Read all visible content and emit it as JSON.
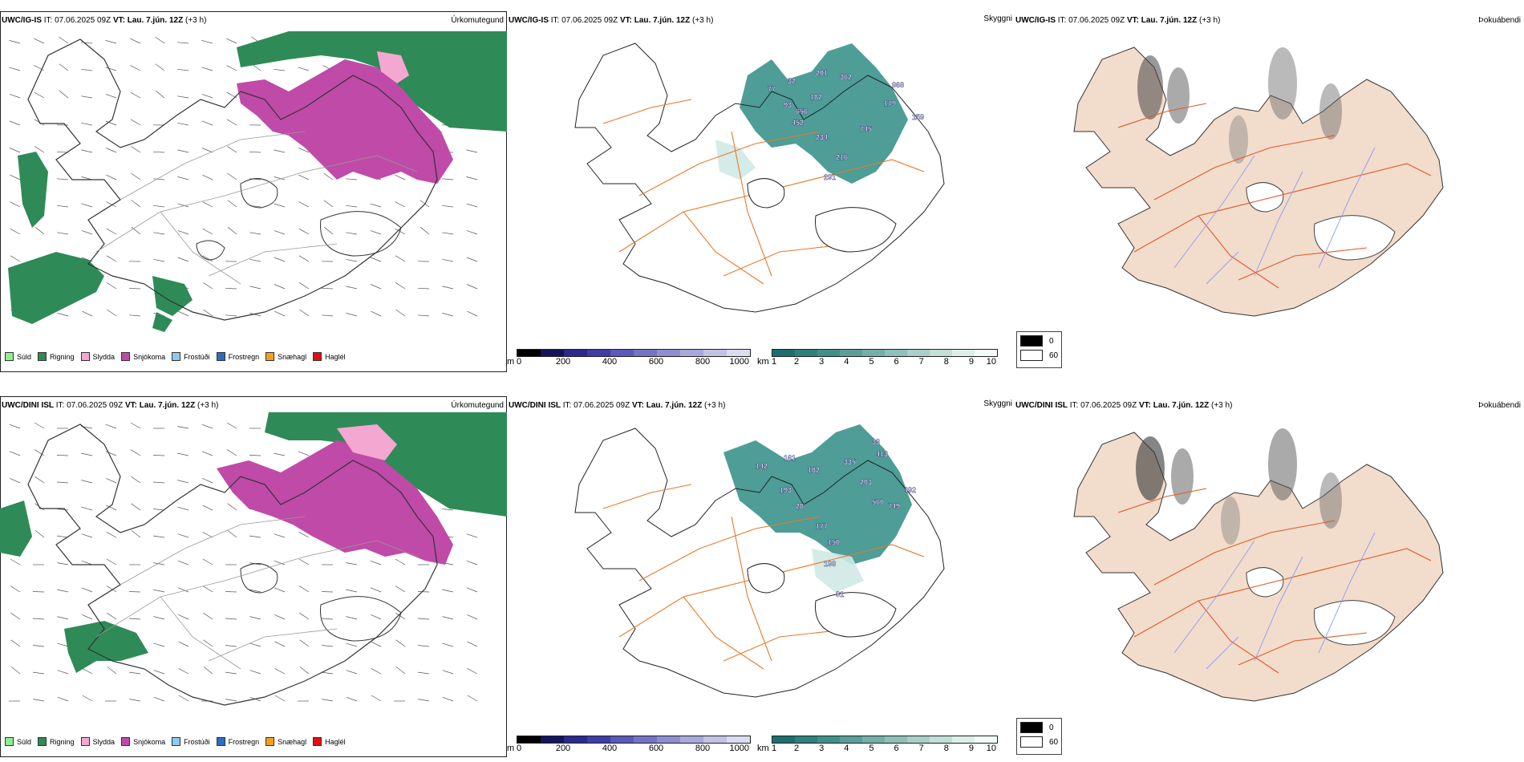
{
  "rows": [
    {
      "model": "UWC/IG-IS",
      "it_label": "IT:",
      "it_value": "07.06.2025 09Z",
      "vt_label": "VT:",
      "vt_value": "Lau. 7.jún. 12Z",
      "lead": "(+3 h)",
      "panel_titles": {
        "precip": "Úrkomutegund",
        "visibility": "Skyggni",
        "fog": "Þokuábendi"
      },
      "visibility_labels": [
        "77",
        "32",
        "201",
        "362",
        "868",
        "93",
        "182",
        "656",
        "179",
        "159",
        "452",
        "745",
        "234",
        "216",
        "291"
      ]
    },
    {
      "model": "UWC/DINI ISL",
      "it_label": "IT:",
      "it_value": "07.06.2025 09Z",
      "vt_label": "VT:",
      "vt_value": "Lau. 7.jún. 12Z",
      "lead": "(+3 h)",
      "panel_titles": {
        "precip": "Úrkomutegund",
        "visibility": "Skyggni",
        "fog": "Þokuábendi"
      },
      "visibility_labels": [
        "142",
        "161",
        "182",
        "335",
        "33",
        "413",
        "203",
        "492",
        "193",
        "560",
        "749",
        "28",
        "177",
        "150",
        "198",
        "31"
      ]
    }
  ],
  "precip_legend": [
    {
      "label": "Súld",
      "color": "#90ee90"
    },
    {
      "label": "Rigning",
      "color": "#2e8b57"
    },
    {
      "label": "Slydda",
      "color": "#f4a7d0"
    },
    {
      "label": "Snjókoma",
      "color": "#c04aa8"
    },
    {
      "label": "Frostúði",
      "color": "#8fc8f0"
    },
    {
      "label": "Frostregn",
      "color": "#2e6bc4"
    },
    {
      "label": "Snæhagl",
      "color": "#f0a020"
    },
    {
      "label": "Haglél",
      "color": "#e01010"
    }
  ],
  "height_scale": {
    "unit": "m",
    "ticks": [
      "0",
      "200",
      "400",
      "600",
      "800",
      "1000"
    ],
    "colors": [
      "#000000",
      "#14145c",
      "#2a2a8c",
      "#3e3ea6",
      "#5a5ab8",
      "#7474c4",
      "#8e8ed0",
      "#a8a8dc",
      "#c2c2e6",
      "#dcdcf0"
    ]
  },
  "visibility_scale": {
    "unit": "km",
    "ticks": [
      "1",
      "2",
      "3",
      "4",
      "5",
      "6",
      "7",
      "8",
      "9",
      "10"
    ],
    "colors": [
      "#1e6e6e",
      "#2f7f7b",
      "#428f89",
      "#5a9f98",
      "#74afa8",
      "#8ebfb8",
      "#a8cfc8",
      "#c2dfd8",
      "#dcefe9",
      "#f4fbf9"
    ]
  },
  "fog_legend": [
    {
      "label": "0",
      "color": "#000000"
    },
    {
      "label": "60",
      "color": "#ffffff"
    }
  ],
  "colors": {
    "rain": "#2e8b57",
    "snow": "#c04aa8",
    "sleet": "#f4a7d0",
    "land": "#f2dccc",
    "road": "#e87a2a",
    "river": "#8c9cf0",
    "vis": "#2f8c85"
  }
}
